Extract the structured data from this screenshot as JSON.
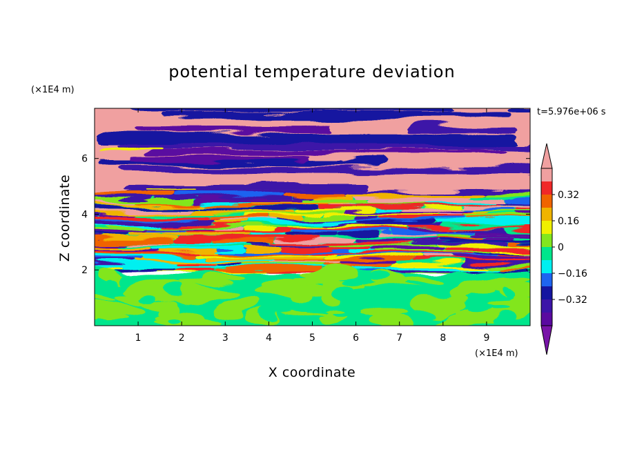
{
  "chart_data": {
    "type": "heatmap",
    "title": "potential temperature deviation",
    "xlabel": "X coordinate",
    "ylabel": "Z coordinate",
    "x_unit": "(×1E4 m)",
    "y_unit": "(×1E4 m)",
    "time_label": "t=5.976e+06 s",
    "xlim": [
      0,
      10
    ],
    "ylim": [
      0,
      7.8
    ],
    "x_ticks": [
      "1",
      "2",
      "3",
      "4",
      "5",
      "6",
      "7",
      "8",
      "9"
    ],
    "y_ticks": [
      "2",
      "4",
      "6"
    ],
    "colorbar": {
      "levels": [
        -0.48,
        -0.4,
        -0.32,
        -0.24,
        -0.16,
        -0.08,
        0,
        0.08,
        0.16,
        0.24,
        0.32,
        0.4,
        0.48
      ],
      "tick_labels": [
        "0.32",
        "0.16",
        "0",
        "−0.16",
        "−0.32"
      ],
      "tick_values": [
        0.32,
        0.16,
        0,
        -0.16,
        -0.32
      ],
      "extend": "both",
      "colors": [
        "#5a0aa0",
        "#3c14a8",
        "#1414a0",
        "#1e64f0",
        "#00f0f0",
        "#00e68c",
        "#82e61e",
        "#f0f000",
        "#f0b400",
        "#f06400",
        "#f02828",
        "#f0a0a0"
      ],
      "under_color": "#7814a8",
      "over_color": "#f0a0a0"
    },
    "field_description_layers": [
      {
        "z_range": [
          0,
          1.9
        ],
        "pattern": "green/light-green mixed, values near 0 to 0.08"
      },
      {
        "z_range": [
          1.9,
          4.6
        ],
        "pattern": "full-range stratified bands: blue, cyan, yellow, orange, red, pink, purple"
      },
      {
        "z_range": [
          4.6,
          7.8
        ],
        "pattern": "alternating pink (above 0.4) and purple (below -0.4) bands"
      }
    ]
  }
}
